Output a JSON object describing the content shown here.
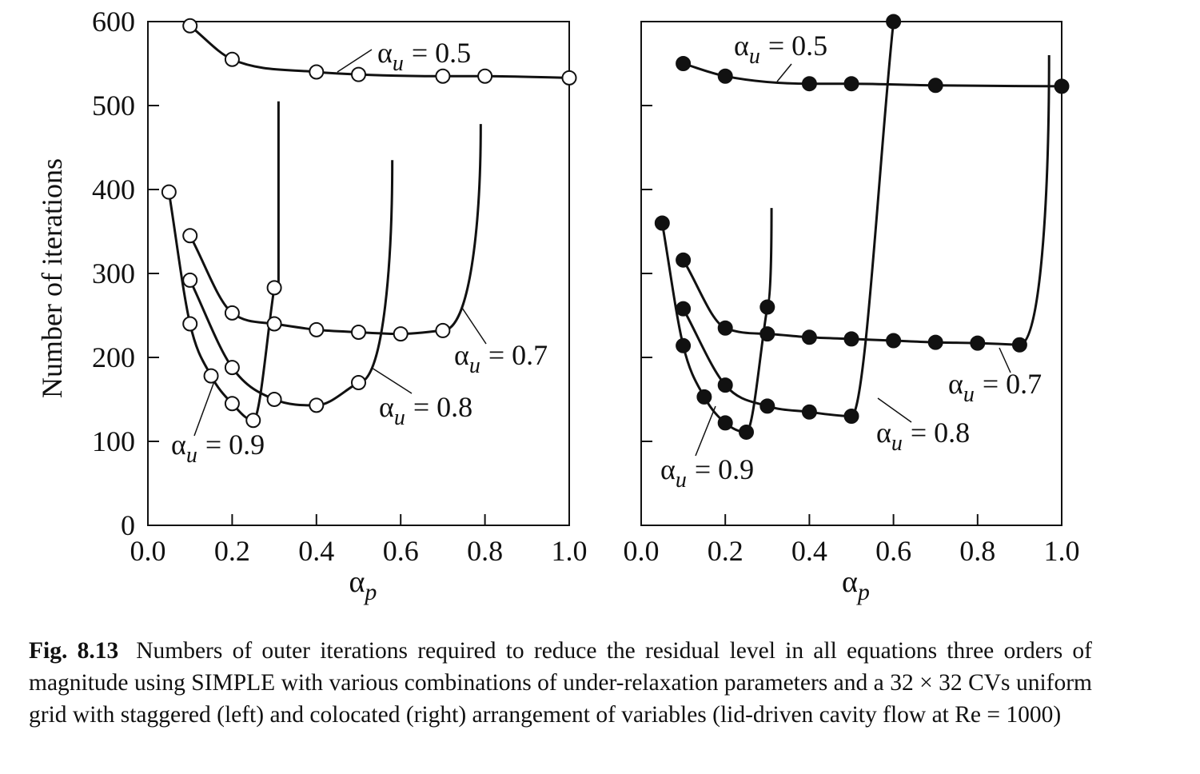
{
  "figure": {
    "y_axis_label": "Number of iterations",
    "y_ticks": [
      0,
      100,
      200,
      300,
      400,
      500,
      600
    ],
    "x_ticks": [
      "0.0",
      "0.2",
      "0.4",
      "0.6",
      "0.8",
      "1.0"
    ],
    "curve_color": "#111111"
  },
  "chart_data": [
    {
      "type": "line",
      "panel": "left (staggered)",
      "marker": "open-circle",
      "xlabel": "αp",
      "ylabel": "Number of iterations",
      "xlim": [
        0.0,
        1.0
      ],
      "ylim": [
        0,
        600
      ],
      "series": [
        {
          "name": "αu = 0.5",
          "x": [
            0.1,
            0.2,
            0.4,
            0.5,
            0.7,
            0.8,
            1.0
          ],
          "y": [
            595,
            555,
            540,
            537,
            535,
            535,
            533
          ]
        },
        {
          "name": "αu = 0.7",
          "x": [
            0.1,
            0.2,
            0.3,
            0.4,
            0.5,
            0.6,
            0.7
          ],
          "y": [
            345,
            253,
            240,
            233,
            230,
            228,
            232
          ]
        },
        {
          "name": "αu = 0.8",
          "x": [
            0.1,
            0.2,
            0.3,
            0.4,
            0.5
          ],
          "y": [
            292,
            188,
            150,
            143,
            170
          ]
        },
        {
          "name": "αu = 0.9",
          "x": [
            0.05,
            0.1,
            0.15,
            0.2,
            0.25,
            0.3
          ],
          "y": [
            397,
            240,
            178,
            145,
            125,
            283
          ]
        }
      ]
    },
    {
      "type": "line",
      "panel": "right (colocated)",
      "marker": "filled-circle",
      "xlabel": "αp",
      "ylabel": "Number of iterations",
      "xlim": [
        0.0,
        1.0
      ],
      "ylim": [
        0,
        600
      ],
      "series": [
        {
          "name": "αu = 0.5",
          "x": [
            0.1,
            0.2,
            0.4,
            0.5,
            0.7,
            1.0
          ],
          "y": [
            550,
            535,
            526,
            526,
            524,
            523
          ]
        },
        {
          "name": "αu = 0.7",
          "x": [
            0.1,
            0.2,
            0.3,
            0.4,
            0.5,
            0.6,
            0.7,
            0.8,
            0.9
          ],
          "y": [
            316,
            235,
            228,
            224,
            222,
            220,
            218,
            217,
            215
          ]
        },
        {
          "name": "αu = 0.8",
          "x": [
            0.1,
            0.2,
            0.3,
            0.4,
            0.5,
            0.6
          ],
          "y": [
            258,
            167,
            142,
            135,
            130,
            600
          ]
        },
        {
          "name": "αu = 0.9",
          "x": [
            0.05,
            0.1,
            0.15,
            0.2,
            0.25,
            0.3
          ],
          "y": [
            360,
            214,
            153,
            122,
            111,
            260
          ]
        }
      ]
    }
  ],
  "caption": {
    "label": "Fig. 8.13",
    "text": "Numbers of outer iterations required to reduce the residual level in all equations three orders of magnitude using SIMPLE with various combinations of under-relaxation parameters and a 32 × 32 CVs uniform grid with staggered (left) and colocated (right) arrangement of variables (lid-driven cavity flow at Re = 1000)"
  }
}
